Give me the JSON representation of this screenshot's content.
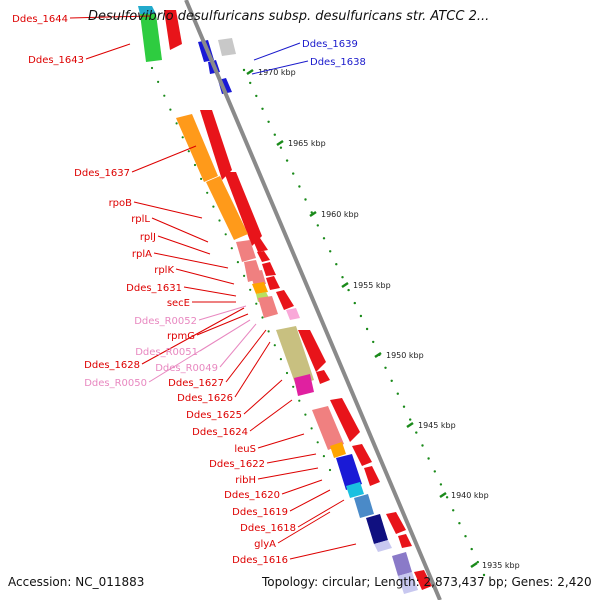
{
  "title": "Desulfovibrio desulfuricans subsp. desulfuricans str. ATCC 2...",
  "footer": {
    "accession": "Accession: NC_011883",
    "topology": "Topology: circular; Length: 2,873,437 bp; Genes: 2,420"
  },
  "colors": {
    "label_red": "#dd0000",
    "label_blue": "#1a1acc",
    "label_pink": "#e888c0",
    "backbone": "#8a8a8a",
    "tick_green": "#1a8a1a"
  },
  "ticks": [
    "1970 kbp",
    "1965 kbp",
    "1960 kbp",
    "1955 kbp",
    "1950 kbp",
    "1945 kbp",
    "1940 kbp",
    "1935 kbp"
  ],
  "gene_labels": [
    {
      "text": "Ddes_1644",
      "color": "red"
    },
    {
      "text": "Ddes_1643",
      "color": "red"
    },
    {
      "text": "Ddes_1639",
      "color": "blue"
    },
    {
      "text": "Ddes_1638",
      "color": "blue"
    },
    {
      "text": "Ddes_1637",
      "color": "red"
    },
    {
      "text": "rpoB",
      "color": "red"
    },
    {
      "text": "rplL",
      "color": "red"
    },
    {
      "text": "rplJ",
      "color": "red"
    },
    {
      "text": "rplA",
      "color": "red"
    },
    {
      "text": "rplK",
      "color": "red"
    },
    {
      "text": "Ddes_1631",
      "color": "red"
    },
    {
      "text": "secE",
      "color": "red"
    },
    {
      "text": "Ddes_R0052",
      "color": "pink"
    },
    {
      "text": "rpmG",
      "color": "red"
    },
    {
      "text": "Ddes_R0051",
      "color": "pink"
    },
    {
      "text": "Ddes_1628",
      "color": "red"
    },
    {
      "text": "Ddes_R0049",
      "color": "pink"
    },
    {
      "text": "Ddes_R0050",
      "color": "pink"
    },
    {
      "text": "Ddes_1627",
      "color": "red"
    },
    {
      "text": "Ddes_1626",
      "color": "red"
    },
    {
      "text": "Ddes_1625",
      "color": "red"
    },
    {
      "text": "Ddes_1624",
      "color": "red"
    },
    {
      "text": "leuS",
      "color": "red"
    },
    {
      "text": "Ddes_1622",
      "color": "red"
    },
    {
      "text": "ribH",
      "color": "red"
    },
    {
      "text": "Ddes_1620",
      "color": "red"
    },
    {
      "text": "Ddes_1619",
      "color": "red"
    },
    {
      "text": "Ddes_1618",
      "color": "red"
    },
    {
      "text": "glyA",
      "color": "red"
    },
    {
      "text": "Ddes_1616",
      "color": "red"
    }
  ]
}
